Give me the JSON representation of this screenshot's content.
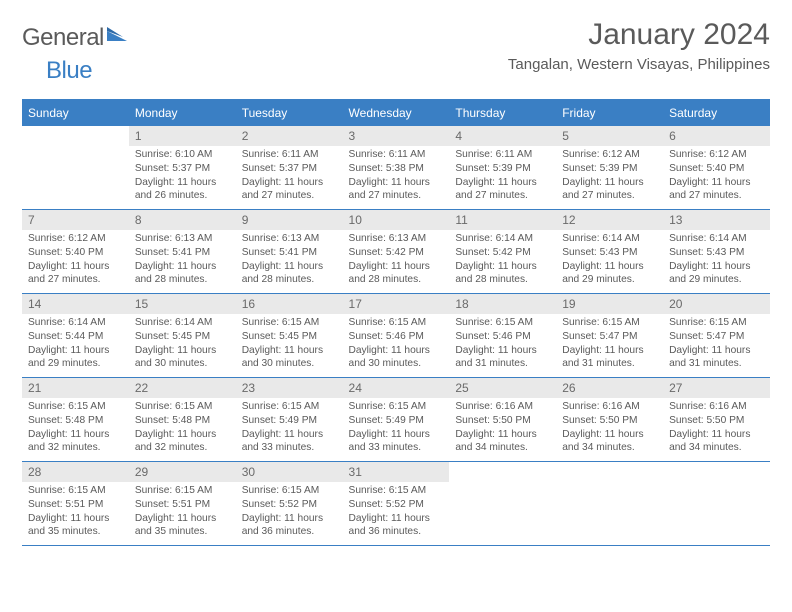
{
  "brand": {
    "text1": "General",
    "text2": "Blue"
  },
  "title": "January 2024",
  "location": "Tangalan, Western Visayas, Philippines",
  "colors": {
    "accent": "#3a7fc4",
    "daynum_bg": "#e9e9e9",
    "text": "#5a5a5a",
    "white": "#ffffff"
  },
  "typography": {
    "title_fontsize": 30,
    "location_fontsize": 15,
    "th_fontsize": 12,
    "daynum_fontsize": 12,
    "body_fontsize": 10.2
  },
  "day_headers": [
    "Sunday",
    "Monday",
    "Tuesday",
    "Wednesday",
    "Thursday",
    "Friday",
    "Saturday"
  ],
  "first_weekday_index": 1,
  "days": [
    {
      "n": 1,
      "sunrise": "6:10 AM",
      "sunset": "5:37 PM",
      "daylight": "11 hours and 26 minutes."
    },
    {
      "n": 2,
      "sunrise": "6:11 AM",
      "sunset": "5:37 PM",
      "daylight": "11 hours and 27 minutes."
    },
    {
      "n": 3,
      "sunrise": "6:11 AM",
      "sunset": "5:38 PM",
      "daylight": "11 hours and 27 minutes."
    },
    {
      "n": 4,
      "sunrise": "6:11 AM",
      "sunset": "5:39 PM",
      "daylight": "11 hours and 27 minutes."
    },
    {
      "n": 5,
      "sunrise": "6:12 AM",
      "sunset": "5:39 PM",
      "daylight": "11 hours and 27 minutes."
    },
    {
      "n": 6,
      "sunrise": "6:12 AM",
      "sunset": "5:40 PM",
      "daylight": "11 hours and 27 minutes."
    },
    {
      "n": 7,
      "sunrise": "6:12 AM",
      "sunset": "5:40 PM",
      "daylight": "11 hours and 27 minutes."
    },
    {
      "n": 8,
      "sunrise": "6:13 AM",
      "sunset": "5:41 PM",
      "daylight": "11 hours and 28 minutes."
    },
    {
      "n": 9,
      "sunrise": "6:13 AM",
      "sunset": "5:41 PM",
      "daylight": "11 hours and 28 minutes."
    },
    {
      "n": 10,
      "sunrise": "6:13 AM",
      "sunset": "5:42 PM",
      "daylight": "11 hours and 28 minutes."
    },
    {
      "n": 11,
      "sunrise": "6:14 AM",
      "sunset": "5:42 PM",
      "daylight": "11 hours and 28 minutes."
    },
    {
      "n": 12,
      "sunrise": "6:14 AM",
      "sunset": "5:43 PM",
      "daylight": "11 hours and 29 minutes."
    },
    {
      "n": 13,
      "sunrise": "6:14 AM",
      "sunset": "5:43 PM",
      "daylight": "11 hours and 29 minutes."
    },
    {
      "n": 14,
      "sunrise": "6:14 AM",
      "sunset": "5:44 PM",
      "daylight": "11 hours and 29 minutes."
    },
    {
      "n": 15,
      "sunrise": "6:14 AM",
      "sunset": "5:45 PM",
      "daylight": "11 hours and 30 minutes."
    },
    {
      "n": 16,
      "sunrise": "6:15 AM",
      "sunset": "5:45 PM",
      "daylight": "11 hours and 30 minutes."
    },
    {
      "n": 17,
      "sunrise": "6:15 AM",
      "sunset": "5:46 PM",
      "daylight": "11 hours and 30 minutes."
    },
    {
      "n": 18,
      "sunrise": "6:15 AM",
      "sunset": "5:46 PM",
      "daylight": "11 hours and 31 minutes."
    },
    {
      "n": 19,
      "sunrise": "6:15 AM",
      "sunset": "5:47 PM",
      "daylight": "11 hours and 31 minutes."
    },
    {
      "n": 20,
      "sunrise": "6:15 AM",
      "sunset": "5:47 PM",
      "daylight": "11 hours and 31 minutes."
    },
    {
      "n": 21,
      "sunrise": "6:15 AM",
      "sunset": "5:48 PM",
      "daylight": "11 hours and 32 minutes."
    },
    {
      "n": 22,
      "sunrise": "6:15 AM",
      "sunset": "5:48 PM",
      "daylight": "11 hours and 32 minutes."
    },
    {
      "n": 23,
      "sunrise": "6:15 AM",
      "sunset": "5:49 PM",
      "daylight": "11 hours and 33 minutes."
    },
    {
      "n": 24,
      "sunrise": "6:15 AM",
      "sunset": "5:49 PM",
      "daylight": "11 hours and 33 minutes."
    },
    {
      "n": 25,
      "sunrise": "6:16 AM",
      "sunset": "5:50 PM",
      "daylight": "11 hours and 34 minutes."
    },
    {
      "n": 26,
      "sunrise": "6:16 AM",
      "sunset": "5:50 PM",
      "daylight": "11 hours and 34 minutes."
    },
    {
      "n": 27,
      "sunrise": "6:16 AM",
      "sunset": "5:50 PM",
      "daylight": "11 hours and 34 minutes."
    },
    {
      "n": 28,
      "sunrise": "6:15 AM",
      "sunset": "5:51 PM",
      "daylight": "11 hours and 35 minutes."
    },
    {
      "n": 29,
      "sunrise": "6:15 AM",
      "sunset": "5:51 PM",
      "daylight": "11 hours and 35 minutes."
    },
    {
      "n": 30,
      "sunrise": "6:15 AM",
      "sunset": "5:52 PM",
      "daylight": "11 hours and 36 minutes."
    },
    {
      "n": 31,
      "sunrise": "6:15 AM",
      "sunset": "5:52 PM",
      "daylight": "11 hours and 36 minutes."
    }
  ],
  "labels": {
    "sunrise": "Sunrise:",
    "sunset": "Sunset:",
    "daylight": "Daylight:"
  }
}
